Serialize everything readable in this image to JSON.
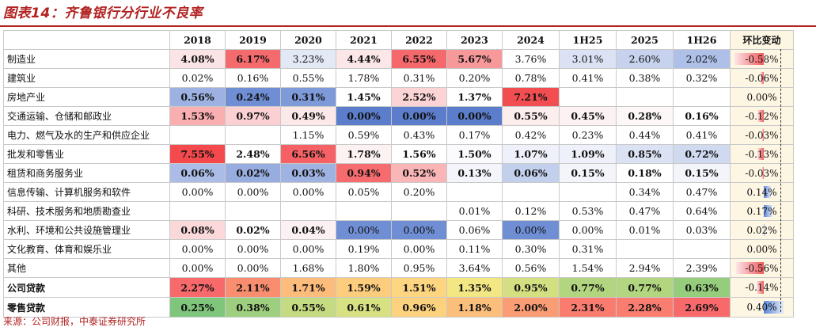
{
  "title": "图表14：齐鲁银行分行业不良率",
  "source": "来源：公司财报，中泰证券研究所",
  "columns": [
    "2018",
    "2019",
    "2020",
    "2021",
    "2022",
    "2023",
    "2024",
    "1H25",
    "2025",
    "1H26",
    "环比变动"
  ],
  "rows": [
    {
      "label": "制造业",
      "values": [
        "4.08%",
        "6.17%",
        "3.23%",
        "4.44%",
        "6.55%",
        "5.67%",
        "3.76%",
        "3.01%",
        "2.60%",
        "2.02%"
      ],
      "bold": [
        true,
        true,
        false,
        true,
        true,
        true,
        false,
        false,
        false,
        false
      ],
      "colors": [
        "#fbe4e6",
        "#f56a6d",
        "#e3e8f5",
        "#fbe6e8",
        "#f5686b",
        "#f7999b",
        "#ffffff",
        "#dbe2f3",
        "#c7d3ee",
        "#aec0e8"
      ],
      "change": "-0.58%",
      "change_value": -0.58
    },
    {
      "label": "建筑业",
      "values": [
        "0.02%",
        "0.16%",
        "0.55%",
        "1.78%",
        "0.31%",
        "0.20%",
        "0.78%",
        "0.41%",
        "0.38%",
        "0.32%"
      ],
      "bold": [
        false,
        false,
        false,
        false,
        false,
        false,
        false,
        false,
        false,
        false
      ],
      "colors": [
        "#ffffff",
        "#ffffff",
        "#ffffff",
        "#ffffff",
        "#ffffff",
        "#ffffff",
        "#ffffff",
        "#ffffff",
        "#ffffff",
        "#ffffff"
      ],
      "change": "-0.06%",
      "change_value": -0.06
    },
    {
      "label": "房地产业",
      "values": [
        "0.56%",
        "0.24%",
        "0.31%",
        "1.45%",
        "2.52%",
        "1.37%",
        "7.21%",
        "",
        "",
        ""
      ],
      "bold": [
        true,
        true,
        true,
        true,
        true,
        true,
        true,
        false,
        false,
        false
      ],
      "colors": [
        "#9db2e2",
        "#6f8ed4",
        "#7e9ad8",
        "#ffffff",
        "#fcd4d6",
        "#ffffff",
        "#f24e52",
        "#ffffff",
        "#ffffff",
        "#ffffff"
      ],
      "change": "0.00%",
      "change_value": 0.0
    },
    {
      "label": "交通运输、仓储和邮政业",
      "values": [
        "1.53%",
        "0.97%",
        "0.49%",
        "0.00%",
        "0.00%",
        "0.00%",
        "0.55%",
        "0.45%",
        "0.28%",
        "0.16%"
      ],
      "bold": [
        true,
        true,
        true,
        true,
        true,
        true,
        true,
        true,
        true,
        true
      ],
      "colors": [
        "#f9aeb0",
        "#fbd0d2",
        "#fce8e9",
        "#5b7dcb",
        "#5b7dcb",
        "#5b7dcb",
        "#fdeeee",
        "#fcf2f3",
        "#fdf7f7",
        "#ffffff"
      ],
      "change": "-0.12%",
      "change_value": -0.12
    },
    {
      "label": "电力、燃气及水的生产和供应企业",
      "values": [
        "",
        "",
        "1.15%",
        "0.59%",
        "0.43%",
        "0.17%",
        "0.42%",
        "0.23%",
        "0.44%",
        "0.41%"
      ],
      "bold": [
        false,
        false,
        false,
        false,
        false,
        false,
        false,
        false,
        false,
        false
      ],
      "colors": [
        "#ffffff",
        "#ffffff",
        "#ffffff",
        "#ffffff",
        "#ffffff",
        "#ffffff",
        "#ffffff",
        "#ffffff",
        "#ffffff",
        "#ffffff"
      ],
      "change": "-0.03%",
      "change_value": -0.03
    },
    {
      "label": "批发和零售业",
      "values": [
        "7.55%",
        "2.48%",
        "6.56%",
        "1.78%",
        "1.56%",
        "1.50%",
        "1.07%",
        "1.09%",
        "0.85%",
        "0.72%"
      ],
      "bold": [
        true,
        true,
        true,
        true,
        true,
        true,
        true,
        true,
        true,
        true
      ],
      "colors": [
        "#f4494d",
        "#ffffff",
        "#f56165",
        "#fdf2f2",
        "#ffffff",
        "#fbfbfd",
        "#eef1f9",
        "#eef1f9",
        "#dbe2f3",
        "#cfd9f0"
      ],
      "change": "-0.13%",
      "change_value": -0.13
    },
    {
      "label": "租赁和商务服务业",
      "values": [
        "0.06%",
        "0.02%",
        "0.03%",
        "0.94%",
        "0.52%",
        "0.13%",
        "0.06%",
        "0.15%",
        "0.18%",
        "0.15%"
      ],
      "bold": [
        true,
        true,
        true,
        true,
        true,
        true,
        true,
        true,
        true,
        true
      ],
      "colors": [
        "#abbde6",
        "#97ade0",
        "#9fb3e3",
        "#f56b6e",
        "#fab5b7",
        "#f3f5fb",
        "#c2cfed",
        "#f3f5fb",
        "#ffffff",
        "#f3f5fb"
      ],
      "change": "-0.03%",
      "change_value": -0.03
    },
    {
      "label": "信息传输、计算机服务和软件",
      "values": [
        "0.00%",
        "0.00%",
        "0.00%",
        "0.05%",
        "0.20%",
        "",
        "",
        "",
        "0.34%",
        "0.47%"
      ],
      "bold": [
        false,
        false,
        false,
        false,
        false,
        false,
        false,
        false,
        false,
        false
      ],
      "colors": [
        "#ffffff",
        "#ffffff",
        "#ffffff",
        "#ffffff",
        "#ffffff",
        "#ffffff",
        "#ffffff",
        "#ffffff",
        "#ffffff",
        "#ffffff"
      ],
      "change": "0.14%",
      "change_value": 0.14
    },
    {
      "label": "科研、技术服务和地质勘查业",
      "values": [
        "",
        "",
        "",
        "",
        "",
        "0.01%",
        "0.12%",
        "0.53%",
        "0.47%",
        "0.64%"
      ],
      "bold": [
        false,
        false,
        false,
        false,
        false,
        false,
        false,
        false,
        false,
        false
      ],
      "colors": [
        "#ffffff",
        "#ffffff",
        "#ffffff",
        "#ffffff",
        "#ffffff",
        "#ffffff",
        "#ffffff",
        "#ffffff",
        "#ffffff",
        "#ffffff"
      ],
      "change": "0.17%",
      "change_value": 0.17
    },
    {
      "label": "水利、环境和公共设施管理业",
      "values": [
        "0.08%",
        "0.02%",
        "0.04%",
        "0.00%",
        "0.00%",
        "0.06%",
        "0.00%",
        "0.00%",
        "0.01%",
        "0.03%"
      ],
      "bold": [
        true,
        true,
        true,
        false,
        false,
        false,
        false,
        false,
        false,
        false
      ],
      "colors": [
        "#fbd9db",
        "#ffffff",
        "#fcf1f2",
        "#6f8ed4",
        "#6f8ed4",
        "#ffffff",
        "#6f8ed4",
        "#ffffff",
        "#ffffff",
        "#ffffff"
      ],
      "change": "0.02%",
      "change_value": 0.02
    },
    {
      "label": "文化教育、体育和娱乐业",
      "values": [
        "0.00%",
        "0.00%",
        "0.00%",
        "0.19%",
        "0.00%",
        "0.11%",
        "0.30%",
        "0.31%",
        "",
        ""
      ],
      "bold": [
        false,
        false,
        false,
        false,
        false,
        false,
        false,
        false,
        false,
        false
      ],
      "colors": [
        "#ffffff",
        "#ffffff",
        "#ffffff",
        "#ffffff",
        "#ffffff",
        "#ffffff",
        "#ffffff",
        "#ffffff",
        "#ffffff",
        "#ffffff"
      ],
      "change": "0.00%",
      "change_value": 0.0
    },
    {
      "label": "其他",
      "values": [
        "0.00%",
        "0.00%",
        "1.68%",
        "1.80%",
        "0.95%",
        "3.64%",
        "0.56%",
        "1.54%",
        "2.94%",
        "2.39%"
      ],
      "bold": [
        false,
        false,
        false,
        false,
        false,
        false,
        false,
        false,
        false,
        false
      ],
      "colors": [
        "#ffffff",
        "#ffffff",
        "#ffffff",
        "#ffffff",
        "#ffffff",
        "#ffffff",
        "#ffffff",
        "#ffffff",
        "#ffffff",
        "#ffffff"
      ],
      "change": "-0.56%",
      "change_value": -0.56
    },
    {
      "label": "公司贷款",
      "total": true,
      "values": [
        "2.27%",
        "2.11%",
        "1.71%",
        "1.59%",
        "1.51%",
        "1.35%",
        "0.95%",
        "0.77%",
        "0.77%",
        "0.63%"
      ],
      "bold": [
        true,
        true,
        true,
        true,
        true,
        true,
        true,
        true,
        true,
        true
      ],
      "colors": [
        "#f8696b",
        "#f98d6f",
        "#fcbc7b",
        "#fdcd7e",
        "#fed580",
        "#f3e783",
        "#d4df81",
        "#b2d57f",
        "#b2d57f",
        "#96cd7d"
      ],
      "change": "-0.14%",
      "change_value": -0.14
    },
    {
      "label": "零售贷款",
      "total": true,
      "values": [
        "0.25%",
        "0.38%",
        "0.55%",
        "0.61%",
        "0.96%",
        "1.18%",
        "2.00%",
        "2.31%",
        "2.28%",
        "2.69%"
      ],
      "bold": [
        true,
        true,
        true,
        true,
        true,
        true,
        true,
        true,
        true,
        true
      ],
      "colors": [
        "#7fc67c",
        "#9dcf7e",
        "#c4db81",
        "#d8e182",
        "#fdd27f",
        "#fcbe7b",
        "#fb9d74",
        "#f97c6f",
        "#f97e6f",
        "#f8696b"
      ],
      "change": "0.40%",
      "change_value": 0.4
    }
  ]
}
